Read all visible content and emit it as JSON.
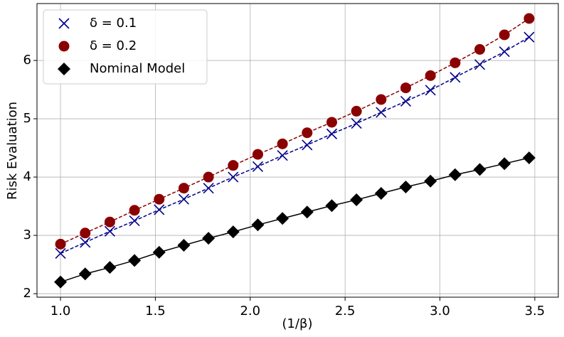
{
  "chart_data": {
    "type": "line",
    "xlabel": "(1/β)",
    "ylabel": "Risk Evaluation",
    "x": [
      1.0,
      1.13,
      1.26,
      1.39,
      1.52,
      1.65,
      1.78,
      1.91,
      2.04,
      2.17,
      2.3,
      2.43,
      2.56,
      2.69,
      2.82,
      2.95,
      3.08,
      3.21,
      3.34,
      3.47
    ],
    "series": [
      {
        "name": "δ = 0.1",
        "color": "#00008b",
        "marker": "x",
        "linestyle": "dashed",
        "values": [
          2.69,
          2.88,
          3.07,
          3.25,
          3.44,
          3.62,
          3.81,
          4.0,
          4.18,
          4.37,
          4.55,
          4.74,
          4.92,
          5.11,
          5.3,
          5.49,
          5.71,
          5.93,
          6.15,
          6.4
        ]
      },
      {
        "name": "δ = 0.2",
        "color": "#8b0000",
        "marker": "circle",
        "linestyle": "dashed",
        "values": [
          2.85,
          3.04,
          3.23,
          3.43,
          3.62,
          3.81,
          4.0,
          4.2,
          4.39,
          4.57,
          4.76,
          4.94,
          5.13,
          5.33,
          5.53,
          5.74,
          5.96,
          6.19,
          6.44,
          6.72
        ]
      },
      {
        "name": "Nominal Model",
        "color": "#000000",
        "marker": "diamond",
        "linestyle": "solid",
        "values": [
          2.2,
          2.34,
          2.45,
          2.57,
          2.71,
          2.83,
          2.95,
          3.06,
          3.18,
          3.29,
          3.4,
          3.51,
          3.61,
          3.72,
          3.83,
          3.93,
          4.04,
          4.13,
          4.23,
          4.33
        ]
      }
    ],
    "xlim": [
      0.876,
      3.624
    ],
    "ylim": [
      1.94,
      6.976
    ],
    "xticks": [
      {
        "value": 1,
        "label": "1.0"
      },
      1.5,
      {
        "value": 2,
        "label": "2.0"
      },
      2.5,
      {
        "value": 3,
        "label": "3.0"
      },
      3.5
    ],
    "yticks": [
      2,
      3,
      4,
      5,
      6
    ],
    "grid": true,
    "legend": "upper left"
  }
}
